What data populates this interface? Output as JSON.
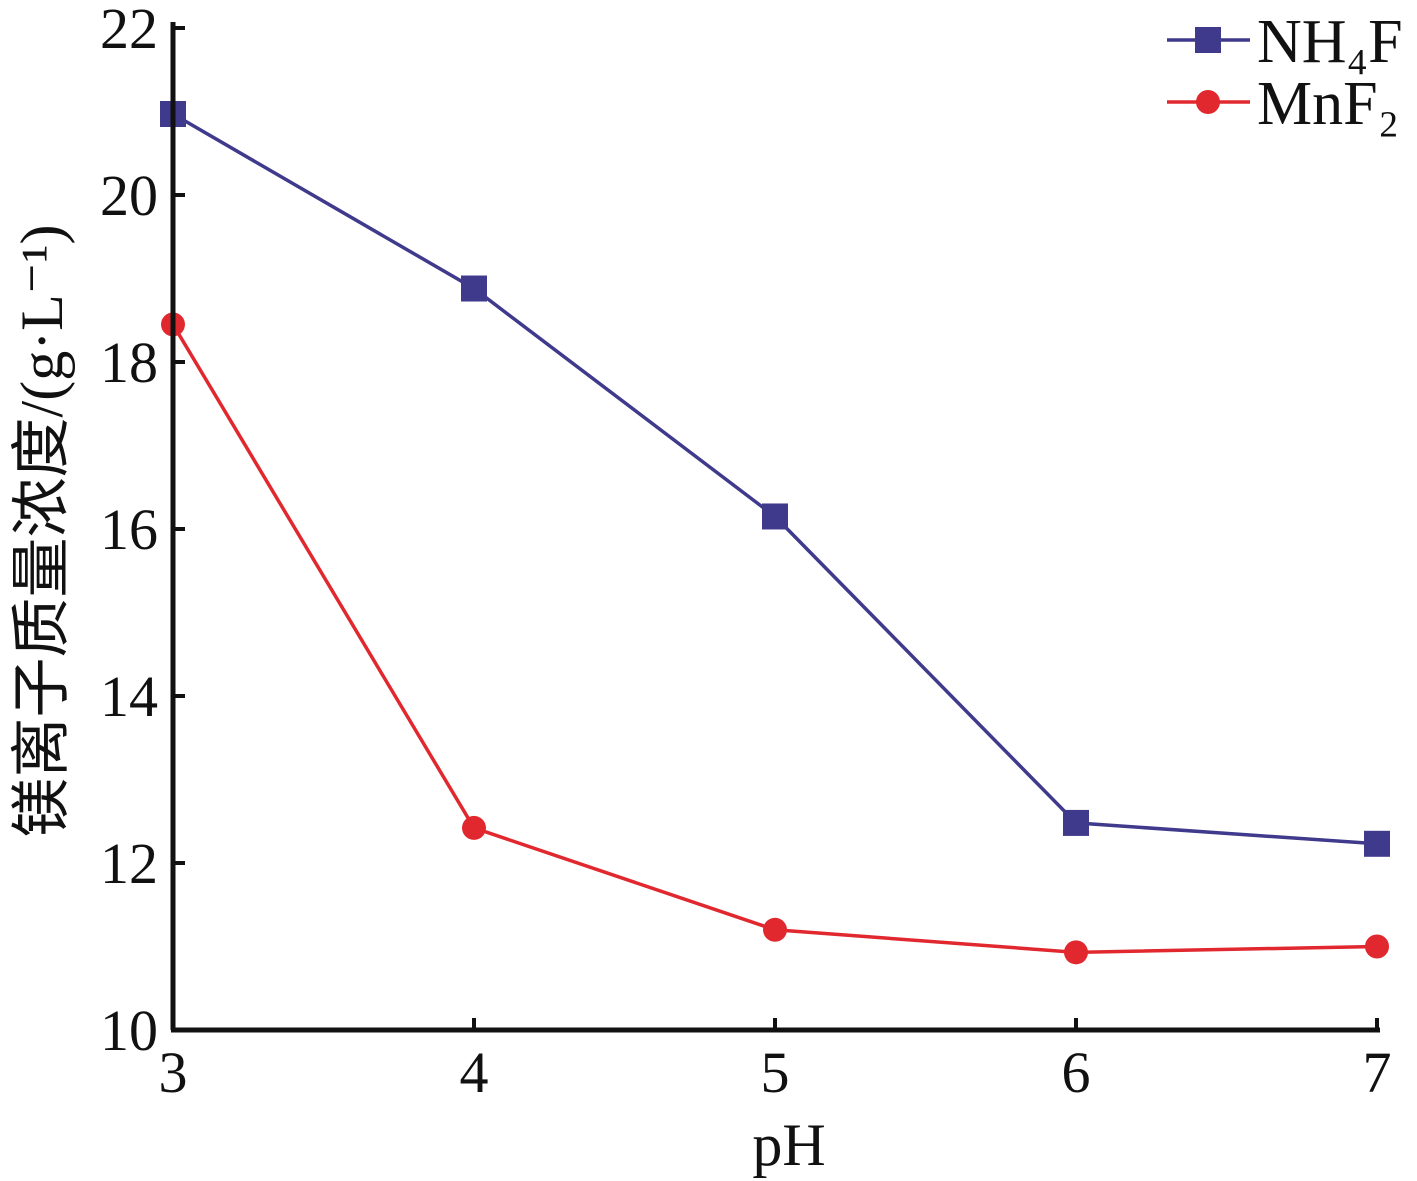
{
  "chart_data": {
    "type": "line",
    "xlabel": "pH",
    "ylabel": "镁离子质量浓度/(g·L⁻¹)",
    "x": [
      3,
      4,
      5,
      6,
      7
    ],
    "xlim": [
      3,
      7
    ],
    "ylim": [
      10,
      22
    ],
    "xticks": [
      "3",
      "4",
      "5",
      "6",
      "7"
    ],
    "yticks": [
      "10",
      "12",
      "14",
      "16",
      "18",
      "20",
      "22"
    ],
    "grid": false,
    "legend_position": "top-right",
    "series": [
      {
        "name": "NH₄F",
        "color": "#3f3a8c",
        "marker": "square",
        "values": [
          20.97,
          18.88,
          16.15,
          12.48,
          12.23
        ]
      },
      {
        "name": "MnF₂",
        "color": "#e0282e",
        "marker": "circle",
        "values": [
          18.45,
          12.42,
          11.2,
          10.93,
          11.0
        ]
      }
    ]
  }
}
